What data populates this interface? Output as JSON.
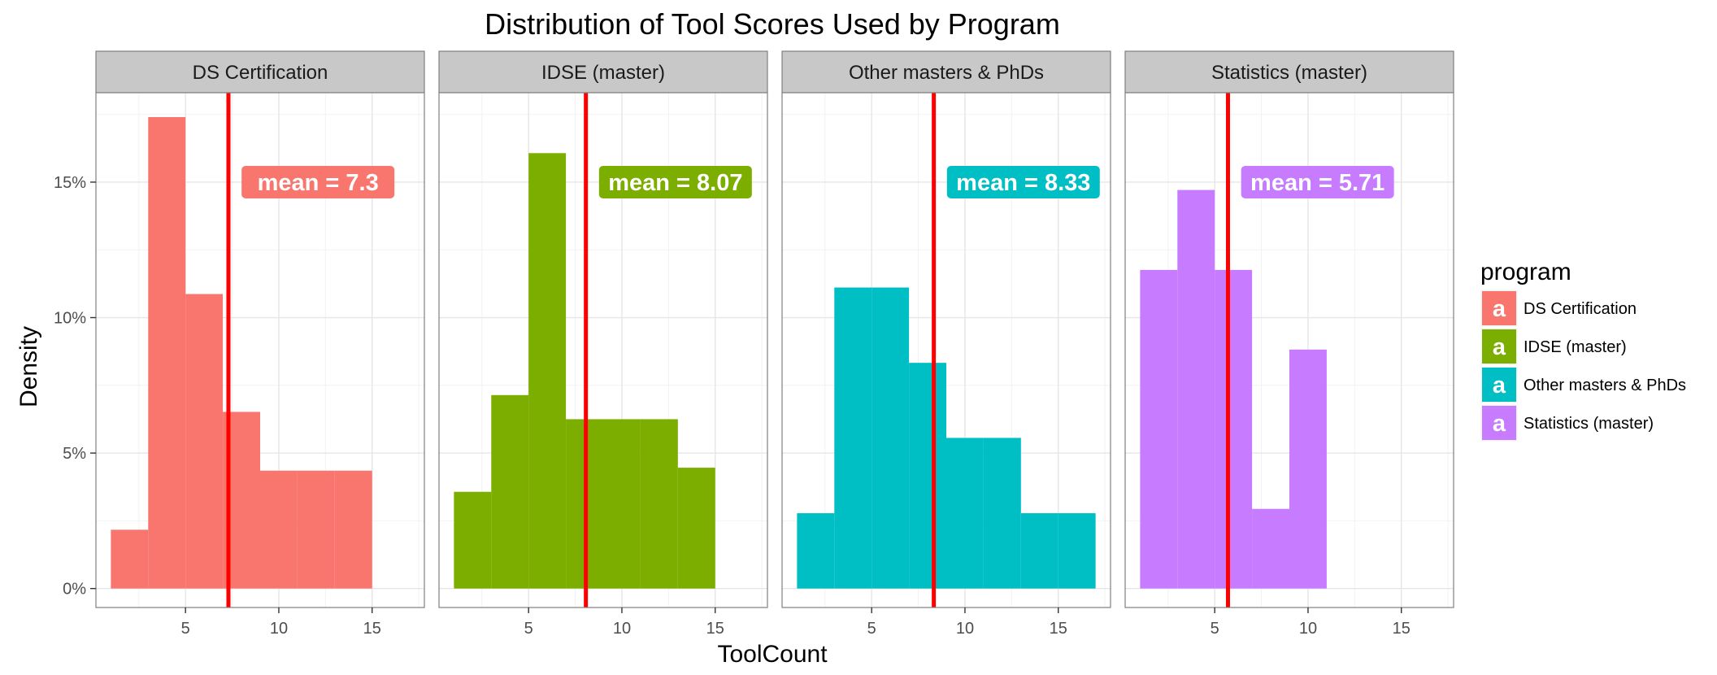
{
  "chart_data": {
    "type": "bar",
    "subtype": "faceted-histogram",
    "title": "Distribution of Tool Scores Used by Program",
    "xlabel": "ToolCount",
    "ylabel": "Density",
    "xlim": [
      0.2,
      17.8
    ],
    "ylim": [
      -0.007,
      0.183
    ],
    "x_ticks": [
      5,
      10,
      15
    ],
    "y_ticks": [
      0,
      0.05,
      0.1,
      0.15
    ],
    "y_tick_labels": [
      "0%",
      "5%",
      "10%",
      "15%"
    ],
    "grid": true,
    "legend": {
      "title": "program",
      "position": "right",
      "key_glyph": "a",
      "entries": [
        "DS Certification",
        "IDSE (master)",
        "Other masters & PhDs",
        "Statistics (master)"
      ]
    },
    "mean_line_color": "#ff0000",
    "series": [
      {
        "name": "DS Certification",
        "color": "#f8766d",
        "mean": 7.3,
        "mean_label": "mean =  7.3",
        "bins": [
          {
            "x0": 1,
            "x1": 3,
            "density": 0.0217
          },
          {
            "x0": 3,
            "x1": 5,
            "density": 0.174
          },
          {
            "x0": 5,
            "x1": 7,
            "density": 0.1087
          },
          {
            "x0": 7,
            "x1": 9,
            "density": 0.0652
          },
          {
            "x0": 9,
            "x1": 11,
            "density": 0.0435
          },
          {
            "x0": 11,
            "x1": 13,
            "density": 0.0435
          },
          {
            "x0": 13,
            "x1": 15,
            "density": 0.0435
          }
        ]
      },
      {
        "name": "IDSE (master)",
        "color": "#7cae00",
        "mean": 8.07,
        "mean_label": "mean =  8.07",
        "bins": [
          {
            "x0": 1,
            "x1": 3,
            "density": 0.0357
          },
          {
            "x0": 3,
            "x1": 5,
            "density": 0.0714
          },
          {
            "x0": 5,
            "x1": 7,
            "density": 0.1607
          },
          {
            "x0": 7,
            "x1": 9,
            "density": 0.0625
          },
          {
            "x0": 9,
            "x1": 11,
            "density": 0.0625
          },
          {
            "x0": 11,
            "x1": 13,
            "density": 0.0625
          },
          {
            "x0": 13,
            "x1": 15,
            "density": 0.0446
          }
        ]
      },
      {
        "name": "Other masters & PhDs",
        "color": "#00bfc4",
        "mean": 8.33,
        "mean_label": "mean =  8.33",
        "bins": [
          {
            "x0": 1,
            "x1": 3,
            "density": 0.0278
          },
          {
            "x0": 3,
            "x1": 5,
            "density": 0.1111
          },
          {
            "x0": 5,
            "x1": 7,
            "density": 0.1111
          },
          {
            "x0": 7,
            "x1": 9,
            "density": 0.0833
          },
          {
            "x0": 9,
            "x1": 11,
            "density": 0.0556
          },
          {
            "x0": 11,
            "x1": 13,
            "density": 0.0556
          },
          {
            "x0": 13,
            "x1": 15,
            "density": 0.0278
          },
          {
            "x0": 15,
            "x1": 17,
            "density": 0.0278
          }
        ]
      },
      {
        "name": "Statistics (master)",
        "color": "#c77cff",
        "mean": 5.71,
        "mean_label": "mean =  5.71",
        "bins": [
          {
            "x0": 1,
            "x1": 3,
            "density": 0.1176
          },
          {
            "x0": 3,
            "x1": 5,
            "density": 0.1471
          },
          {
            "x0": 5,
            "x1": 7,
            "density": 0.1176
          },
          {
            "x0": 7,
            "x1": 9,
            "density": 0.0294
          },
          {
            "x0": 9,
            "x1": 11,
            "density": 0.0882
          }
        ]
      }
    ]
  }
}
